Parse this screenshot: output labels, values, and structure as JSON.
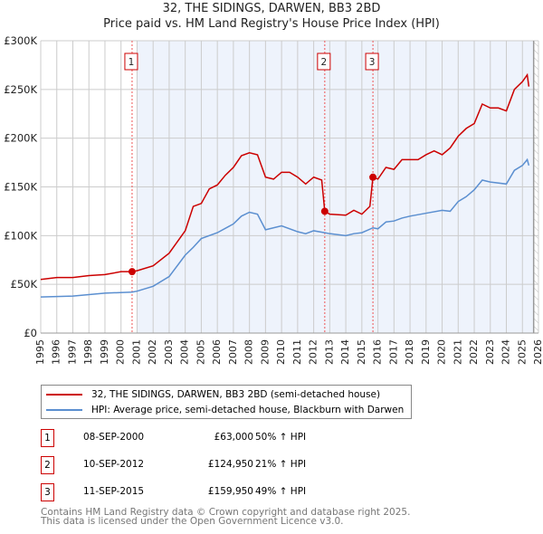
{
  "chart_data": {
    "type": "line",
    "title": "32, THE SIDINGS, DARWEN, BB3 2BD",
    "subtitle": "Price paid vs. HM Land Registry's House Price Index (HPI)",
    "xlim": [
      1995,
      2026
    ],
    "ylim": [
      0,
      300000
    ],
    "x_ticks": [
      "1995",
      "1996",
      "1997",
      "1998",
      "1999",
      "2000",
      "2001",
      "2002",
      "2003",
      "2004",
      "2005",
      "2006",
      "2007",
      "2008",
      "2009",
      "2010",
      "2011",
      "2012",
      "2013",
      "2014",
      "2015",
      "2016",
      "2017",
      "2018",
      "2019",
      "2020",
      "2021",
      "2022",
      "2023",
      "2024",
      "2025",
      "2026"
    ],
    "y_ticks": [
      {
        "v": 0,
        "label": "£0"
      },
      {
        "v": 50000,
        "label": "£50K"
      },
      {
        "v": 100000,
        "label": "£100K"
      },
      {
        "v": 150000,
        "label": "£150K"
      },
      {
        "v": 200000,
        "label": "£200K"
      },
      {
        "v": 250000,
        "label": "£250K"
      },
      {
        "v": 300000,
        "label": "£300K"
      }
    ],
    "grid": true,
    "series": [
      {
        "name": "32, THE SIDINGS, DARWEN, BB3 2BD (semi-detached house)",
        "color": "#cc0000",
        "x": [
          1995,
          1996,
          1997,
          1998,
          1999,
          2000,
          2000.69,
          2001,
          2002,
          2003,
          2004,
          2004.5,
          2005,
          2005.5,
          2006,
          2006.5,
          2007,
          2007.5,
          2008,
          2008.5,
          2009,
          2009.5,
          2010,
          2010.5,
          2011,
          2011.5,
          2012,
          2012.5,
          2012.69,
          2013,
          2014,
          2014.5,
          2015,
          2015.5,
          2015.69,
          2016,
          2016.5,
          2017,
          2017.5,
          2018,
          2018.5,
          2019,
          2019.5,
          2020,
          2020.5,
          2021,
          2021.5,
          2022,
          2022.5,
          2023,
          2023.5,
          2024,
          2024.5,
          2025,
          2025.3,
          2025.4
        ],
        "y": [
          55000,
          57000,
          57000,
          59000,
          60000,
          63000,
          63000,
          64000,
          69000,
          82000,
          105000,
          130000,
          133000,
          148000,
          152000,
          162000,
          170000,
          182000,
          185000,
          183000,
          160000,
          158000,
          165000,
          165000,
          160000,
          153000,
          160000,
          157000,
          124950,
          122000,
          121000,
          126000,
          122000,
          130000,
          159950,
          158000,
          170000,
          168000,
          178000,
          178000,
          178000,
          183000,
          187000,
          183000,
          190000,
          202000,
          210000,
          215000,
          235000,
          231000,
          231000,
          228000,
          250000,
          258000,
          265000,
          253000
        ]
      },
      {
        "name": "HPI: Average price, semi-detached house, Blackburn with Darwen",
        "color": "#5b8fd0",
        "x": [
          1995,
          1997,
          1999,
          2000.69,
          2001,
          2002,
          2003,
          2004,
          2004.5,
          2005,
          2006,
          2007,
          2007.5,
          2008,
          2008.5,
          2009,
          2010,
          2011,
          2011.5,
          2012,
          2012.69,
          2013,
          2014,
          2014.5,
          2015,
          2015.69,
          2016,
          2016.5,
          2017,
          2017.5,
          2018,
          2019,
          2020,
          2020.5,
          2021,
          2021.5,
          2022,
          2022.5,
          2023,
          2024,
          2024.5,
          2025,
          2025.3,
          2025.4
        ],
        "y": [
          37000,
          38000,
          41000,
          42000,
          43000,
          48000,
          58000,
          80000,
          88000,
          97000,
          103000,
          112000,
          120000,
          124000,
          122000,
          106000,
          110000,
          104000,
          102000,
          105000,
          103000,
          102000,
          100000,
          102000,
          103000,
          108000,
          107000,
          114000,
          115000,
          118000,
          120000,
          123000,
          126000,
          125000,
          135000,
          140000,
          147000,
          157000,
          155000,
          153000,
          167000,
          172000,
          178000,
          172000
        ]
      }
    ],
    "sales": [
      {
        "label": "1",
        "x": 2000.69,
        "y": 63000
      },
      {
        "label": "2",
        "x": 2012.69,
        "y": 124950
      },
      {
        "label": "3",
        "x": 2015.69,
        "y": 159950
      }
    ],
    "shaded_from": 2001,
    "hatch_from": 2025.7,
    "legend_placement": "below"
  },
  "legend": {
    "red": "32, THE SIDINGS, DARWEN, BB3 2BD (semi-detached house)",
    "blue": "HPI: Average price, semi-detached house, Blackburn with Darwen"
  },
  "transactions": [
    {
      "num": "1",
      "date": "08-SEP-2000",
      "price": "£63,000",
      "hpi": "50% ↑ HPI"
    },
    {
      "num": "2",
      "date": "10-SEP-2012",
      "price": "£124,950",
      "hpi": "21% ↑ HPI"
    },
    {
      "num": "3",
      "date": "11-SEP-2015",
      "price": "£159,950",
      "hpi": "49% ↑ HPI"
    }
  ],
  "footer": {
    "line1": "Contains HM Land Registry data © Crown copyright and database right 2025.",
    "line2": "This data is licensed under the Open Government Licence v3.0."
  }
}
